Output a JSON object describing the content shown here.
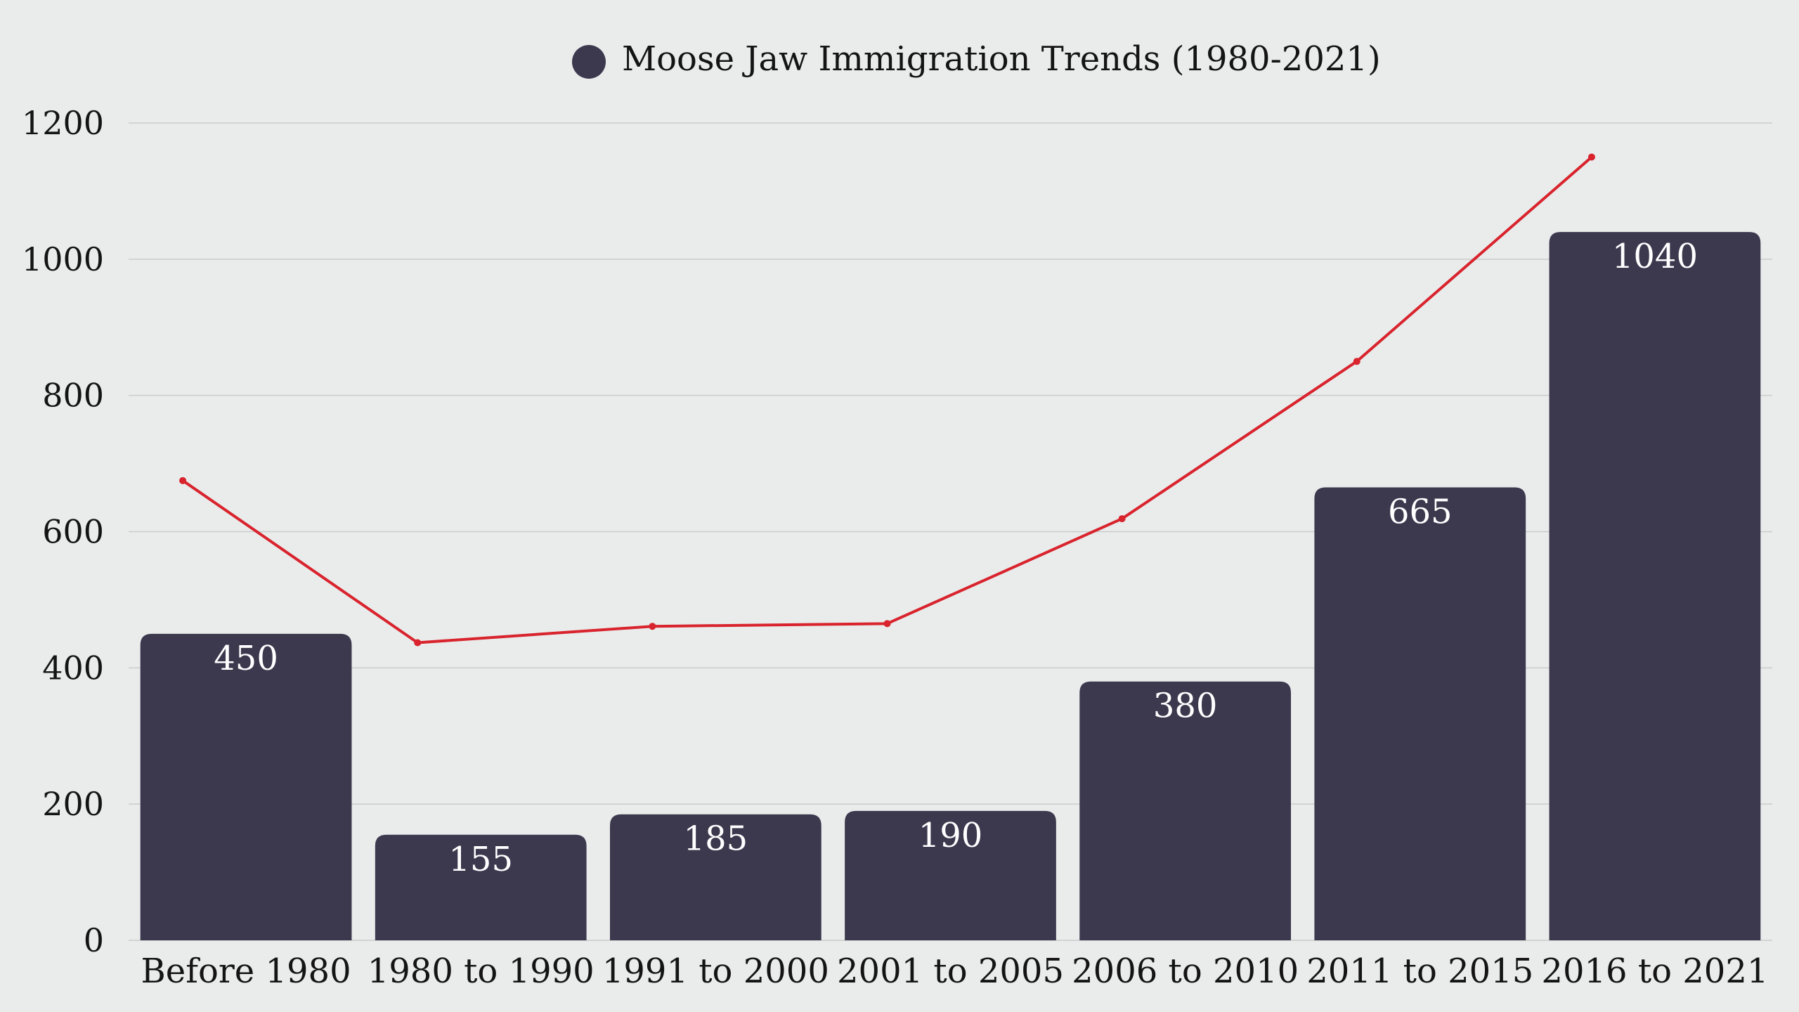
{
  "chart_data": {
    "type": "bar",
    "title": "Moose Jaw Immigration Trends (1980-2021)",
    "legend": [
      {
        "label": "Moose Jaw Immigration Trends (1980-2021)",
        "marker": "circle",
        "color": "#3c384e"
      }
    ],
    "categories": [
      "Before 1980",
      "1980 to 1990",
      "1991 to 2000",
      "2001 to 2005",
      "2006 to 2010",
      "2011 to 2015",
      "2016 to 2021"
    ],
    "series": [
      {
        "name": "Moose Jaw Immigration Trends (1980-2021)",
        "type": "bar",
        "values": [
          450,
          155,
          185,
          190,
          380,
          665,
          1040
        ],
        "value_labels": [
          "450",
          "155",
          "185",
          "190",
          "380",
          "665",
          "1040"
        ],
        "color": "#3c384e"
      },
      {
        "name": "trend",
        "type": "line",
        "values": [
          675,
          437,
          461,
          465,
          619,
          850,
          1150
        ],
        "color": "#d9232d"
      }
    ],
    "y_ticks": [
      "0",
      "200",
      "400",
      "600",
      "800",
      "1000",
      "1200"
    ],
    "y_tick_values": [
      0,
      200,
      400,
      600,
      800,
      1000,
      1200
    ],
    "ylim": [
      0,
      1200
    ],
    "xlabel": "",
    "ylabel": "",
    "grid": true,
    "legend_position": "top-center",
    "background": "#e9eceb"
  }
}
